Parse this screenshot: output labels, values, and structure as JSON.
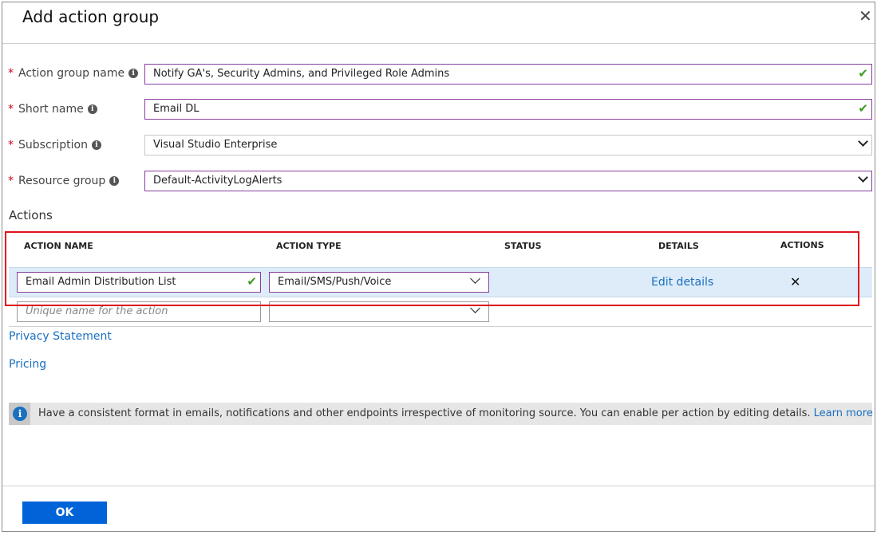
{
  "dialog": {
    "title": "Add action group",
    "close_icon": "close-icon"
  },
  "form": {
    "action_group_name": {
      "label": "Action group name",
      "value": "Notify GA's, Security Admins, and Privileged Role Admins",
      "valid": true
    },
    "short_name": {
      "label": "Short name",
      "value": "Email DL",
      "valid": true
    },
    "subscription": {
      "label": "Subscription",
      "value": "Visual Studio Enterprise"
    },
    "resource_group": {
      "label": "Resource group",
      "value": "Default-ActivityLogAlerts"
    },
    "required_marker": "*"
  },
  "actions": {
    "heading": "Actions",
    "columns": [
      "ACTION NAME",
      "ACTION TYPE",
      "STATUS",
      "DETAILS",
      "ACTIONS"
    ],
    "rows": [
      {
        "name": "Email Admin Distribution List",
        "type": "Email/SMS/Push/Voice",
        "status": "",
        "details_link": "Edit details",
        "delete_icon": "✕"
      }
    ],
    "new_row": {
      "name_placeholder": "Unique name for the action",
      "type": ""
    }
  },
  "links": {
    "privacy": "Privacy Statement",
    "pricing": "Pricing"
  },
  "info_bar": {
    "text": "Have a consistent format in emails, notifications and other endpoints irrespective of monitoring source. You can enable per action by editing details.",
    "link": "Learn more"
  },
  "footer": {
    "ok": "OK"
  },
  "colors": {
    "accent": "#0063d8",
    "highlight": "#deecf9",
    "focus_border": "#8a3f9f",
    "error_box": "#e0121b",
    "valid": "#3c9a1e",
    "link": "#1a6fc0"
  }
}
